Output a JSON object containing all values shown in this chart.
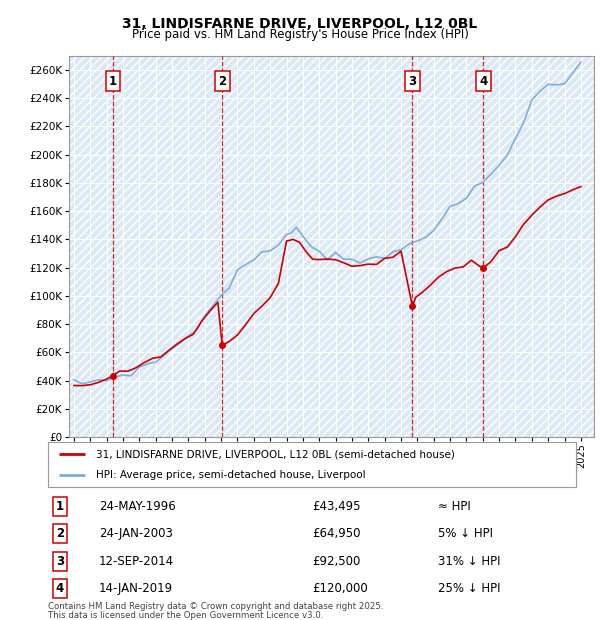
{
  "title": "31, LINDISFARNE DRIVE, LIVERPOOL, L12 0BL",
  "subtitle": "Price paid vs. HM Land Registry's House Price Index (HPI)",
  "sales": [
    {
      "num": 1,
      "date": "24-MAY-1996",
      "price": 43495,
      "year": 1996.39,
      "label": "≈ HPI"
    },
    {
      "num": 2,
      "date": "24-JAN-2003",
      "price": 64950,
      "year": 2003.07,
      "label": "5% ↓ HPI"
    },
    {
      "num": 3,
      "date": "12-SEP-2014",
      "price": 92500,
      "year": 2014.7,
      "label": "31% ↓ HPI"
    },
    {
      "num": 4,
      "date": "14-JAN-2019",
      "price": 120000,
      "year": 2019.04,
      "label": "25% ↓ HPI"
    }
  ],
  "legend_line1": "31, LINDISFARNE DRIVE, LIVERPOOL, L12 0BL (semi-detached house)",
  "legend_line2": "HPI: Average price, semi-detached house, Liverpool",
  "footnote1": "Contains HM Land Registry data © Crown copyright and database right 2025.",
  "footnote2": "This data is licensed under the Open Government Licence v3.0.",
  "red_color": "#cc0000",
  "blue_color": "#7aabdb",
  "vline_color": "#cc0000",
  "bg_color": "#dce8f3",
  "ylim_max": 270000,
  "ylim_min": 0,
  "xmin": 1993.7,
  "xmax": 2025.8,
  "hpi_years": [
    1994.0,
    1994.5,
    1995.0,
    1995.5,
    1996.0,
    1996.5,
    1997.0,
    1997.5,
    1998.0,
    1998.5,
    1999.0,
    1999.5,
    2000.0,
    2000.5,
    2001.0,
    2001.5,
    2002.0,
    2002.5,
    2003.0,
    2003.5,
    2004.0,
    2004.5,
    2005.0,
    2005.5,
    2006.0,
    2006.5,
    2007.0,
    2007.3,
    2007.6,
    2008.0,
    2008.5,
    2009.0,
    2009.5,
    2010.0,
    2010.5,
    2011.0,
    2011.5,
    2012.0,
    2012.5,
    2013.0,
    2013.5,
    2014.0,
    2014.5,
    2015.0,
    2015.5,
    2016.0,
    2016.5,
    2017.0,
    2017.5,
    2018.0,
    2018.5,
    2019.0,
    2019.5,
    2020.0,
    2020.5,
    2021.0,
    2021.5,
    2022.0,
    2022.5,
    2023.0,
    2023.5,
    2024.0,
    2024.5,
    2025.0
  ],
  "hpi_prices": [
    38000,
    38500,
    39000,
    40000,
    41000,
    42500,
    44000,
    46000,
    48000,
    51000,
    54000,
    58000,
    62000,
    67000,
    72000,
    78000,
    85000,
    93000,
    100000,
    108000,
    116000,
    122000,
    126000,
    128000,
    132000,
    138000,
    144000,
    148000,
    147000,
    143000,
    136000,
    130000,
    128000,
    130000,
    129000,
    127000,
    125000,
    124000,
    125000,
    127000,
    130000,
    133000,
    136000,
    140000,
    144000,
    149000,
    154000,
    160000,
    165000,
    170000,
    175000,
    180000,
    186000,
    192000,
    200000,
    212000,
    225000,
    238000,
    245000,
    248000,
    250000,
    253000,
    258000,
    263000
  ],
  "red_years": [
    1994.0,
    1994.5,
    1995.0,
    1995.5,
    1996.0,
    1996.39,
    1996.8,
    1997.3,
    1997.8,
    1998.3,
    1998.8,
    1999.3,
    1999.8,
    2000.3,
    2000.8,
    2001.3,
    2001.8,
    2002.3,
    2002.8,
    2003.07,
    2003.5,
    2004.0,
    2004.5,
    2005.0,
    2005.5,
    2006.0,
    2006.5,
    2007.0,
    2007.4,
    2007.8,
    2008.2,
    2008.6,
    2009.0,
    2009.5,
    2010.0,
    2010.5,
    2011.0,
    2011.5,
    2012.0,
    2012.5,
    2013.0,
    2013.5,
    2014.0,
    2014.7,
    2014.9,
    2015.3,
    2015.8,
    2016.3,
    2016.8,
    2017.3,
    2017.8,
    2018.3,
    2018.8,
    2019.04,
    2019.5,
    2020.0,
    2020.5,
    2021.0,
    2021.5,
    2022.0,
    2022.5,
    2023.0,
    2023.5,
    2024.0,
    2024.5,
    2025.0
  ],
  "red_prices": [
    37000,
    37500,
    38500,
    40000,
    41500,
    43495,
    45000,
    47000,
    49000,
    51000,
    54000,
    57000,
    61000,
    65000,
    70000,
    75000,
    81000,
    88000,
    95000,
    64950,
    68000,
    73000,
    80000,
    86000,
    91000,
    98000,
    108000,
    138000,
    140000,
    138000,
    132000,
    126000,
    123000,
    125000,
    126000,
    124000,
    122000,
    121000,
    122000,
    124000,
    126000,
    128000,
    130000,
    92500,
    97000,
    103000,
    108000,
    113000,
    116000,
    119000,
    122000,
    125000,
    121000,
    120000,
    125000,
    130000,
    135000,
    143000,
    150000,
    157000,
    163000,
    167000,
    170000,
    172000,
    174000,
    177000
  ]
}
